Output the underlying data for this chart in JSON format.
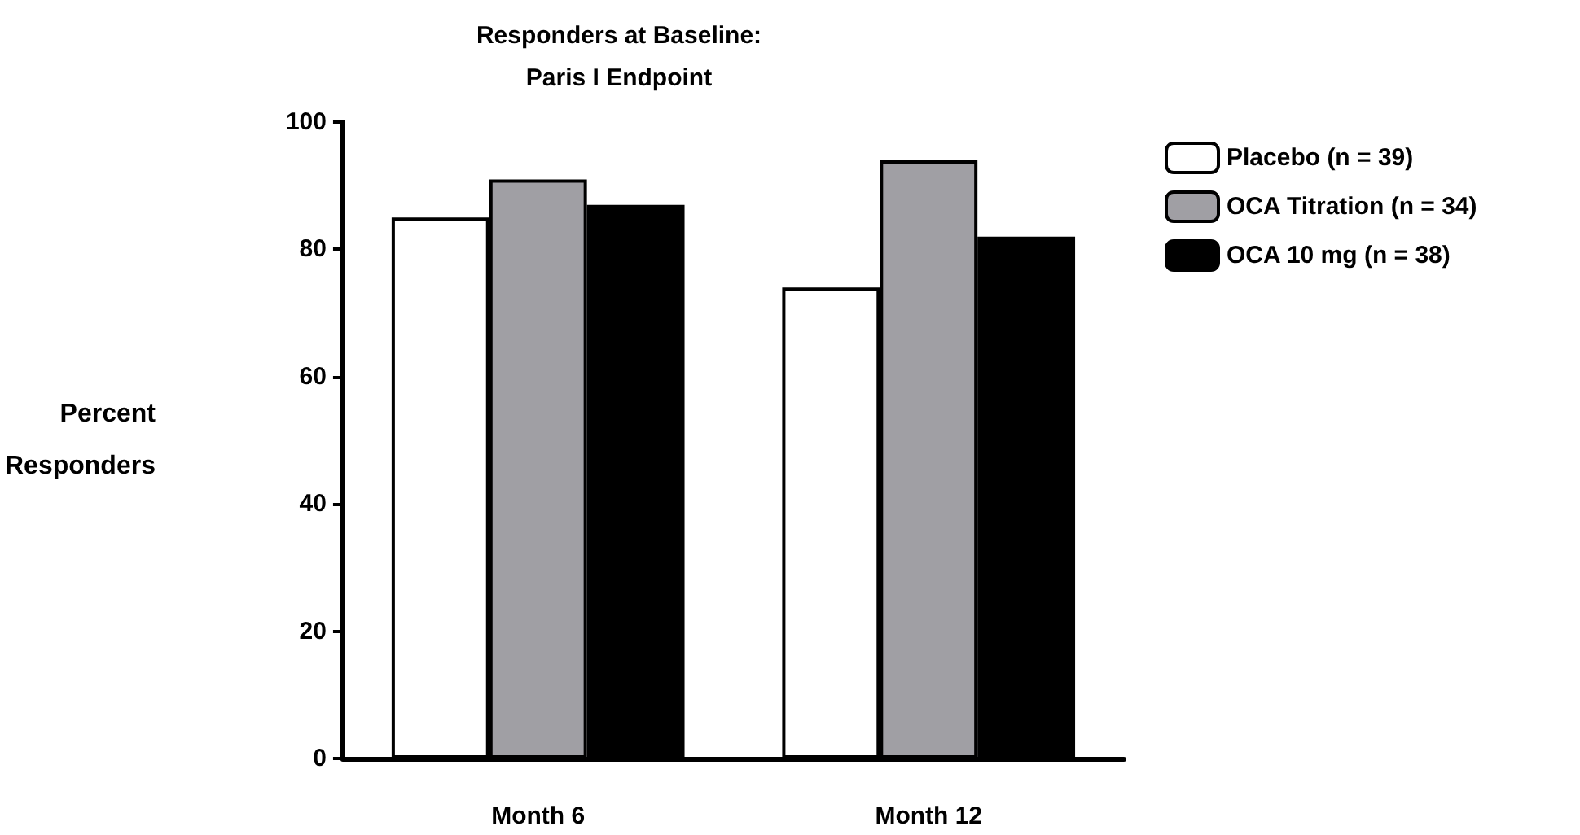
{
  "chart_data": {
    "type": "bar",
    "title": "Responders at Baseline:\nParis I Endpoint",
    "ylabel": "Percent\nResponders",
    "categories": [
      "Month 6",
      "Month 12"
    ],
    "series": [
      {
        "name": "Placebo (n = 39)",
        "color": "#ffffff",
        "values": [
          85,
          74
        ]
      },
      {
        "name": "OCA Titration (n = 34)",
        "color": "#a09fa4",
        "values": [
          91,
          94
        ]
      },
      {
        "name": "OCA 10 mg (n = 38)",
        "color": "#000000",
        "values": [
          87,
          82
        ]
      }
    ],
    "ylim": [
      0,
      100
    ],
    "yticks": [
      0,
      20,
      40,
      60,
      80,
      100
    ],
    "grid": false,
    "legend": "top right"
  }
}
